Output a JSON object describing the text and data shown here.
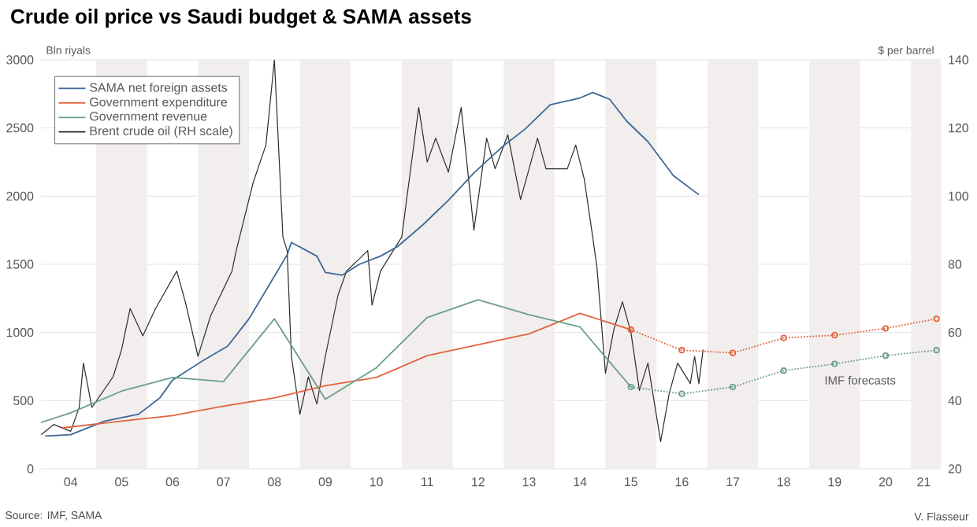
{
  "chart_data": {
    "type": "line",
    "title": "Crude oil price vs Saudi budget & SAMA assets",
    "ylabel": "Bln riyals",
    "y2label": "$ per barrel",
    "annotations": [
      {
        "text": "IMF forecasts",
        "x": "2020-01",
        "y": 650
      },
      "Source: IMF, SAMA",
      "V. Flasseur"
    ],
    "xlim": [
      "2003-12-01",
      "2021-08-01"
    ],
    "xticks": [
      {
        "value": "2004-07",
        "label": "04"
      },
      {
        "value": "2005-07",
        "label": "05"
      },
      {
        "value": "2006-07",
        "label": "06"
      },
      {
        "value": "2007-07",
        "label": "07"
      },
      {
        "value": "2008-07",
        "label": "08"
      },
      {
        "value": "2009-07",
        "label": "09"
      },
      {
        "value": "2010-07",
        "label": "10"
      },
      {
        "value": "2011-07",
        "label": "11"
      },
      {
        "value": "2012-07",
        "label": "12"
      },
      {
        "value": "2013-07",
        "label": "13"
      },
      {
        "value": "2014-07",
        "label": "14"
      },
      {
        "value": "2015-07",
        "label": "15"
      },
      {
        "value": "2016-07",
        "label": "16"
      },
      {
        "value": "2017-07",
        "label": "17"
      },
      {
        "value": "2018-07",
        "label": "18"
      },
      {
        "value": "2019-07",
        "label": "19"
      },
      {
        "value": "2020-07",
        "label": "20"
      },
      {
        "value": "2021-04",
        "label": "21"
      }
    ],
    "ylim": [
      0,
      3000
    ],
    "yticks": [
      0,
      500,
      1000,
      1500,
      2000,
      2500,
      3000
    ],
    "y2lim": [
      20,
      140
    ],
    "y2ticks": [
      20,
      40,
      60,
      80,
      100,
      120,
      140
    ],
    "grid": "y",
    "legend": "top left",
    "marker": "none",
    "line_style": "solid",
    "bands": [
      {
        "axis": "x",
        "from": "2005",
        "to": "2006",
        "color": "#f2eeed"
      },
      {
        "axis": "x",
        "from": "2007",
        "to": "2008",
        "color": "#f2eeed"
      },
      {
        "axis": "x",
        "from": "2009",
        "to": "2010",
        "color": "#f2eeed"
      },
      {
        "axis": "x",
        "from": "2011",
        "to": "2012",
        "color": "#f2eeed"
      },
      {
        "axis": "x",
        "from": "2013",
        "to": "2014",
        "color": "#f2eeed"
      },
      {
        "axis": "x",
        "from": "2015",
        "to": "2016",
        "color": "#f2eeed"
      },
      {
        "axis": "x",
        "from": "2017",
        "to": "2018",
        "color": "#f2eeed"
      },
      {
        "axis": "x",
        "from": "2019",
        "to": "2020",
        "color": "#f2eeed"
      },
      {
        "axis": "x",
        "from": "2021",
        "to": "2021-08-01",
        "color": "#f2eeed"
      }
    ],
    "series": [
      {
        "name": "SAMA net foreign assets",
        "color": "#3d6796",
        "x": [
          "2004-01",
          "2004-07",
          "2004-11",
          "2005-03",
          "2005-11",
          "2006-04",
          "2006-07",
          "2007-02",
          "2007-08",
          "2008-01",
          "2008-06",
          "2008-10",
          "2008-11",
          "2009-05",
          "2009-07",
          "2009-11",
          "2010-03",
          "2010-08",
          "2010-12",
          "2011-06",
          "2011-12",
          "2012-06",
          "2013-01",
          "2013-06",
          "2013-12",
          "2014-07",
          "2014-10",
          "2015-02",
          "2015-06",
          "2015-11",
          "2016-05",
          "2016-11"
        ],
        "values": [
          240,
          250,
          300,
          350,
          400,
          520,
          650,
          790,
          900,
          1100,
          1360,
          1570,
          1660,
          1560,
          1440,
          1420,
          1500,
          1560,
          1630,
          1790,
          1970,
          2170,
          2370,
          2490,
          2670,
          2720,
          2760,
          2710,
          2550,
          2400,
          2150,
          2010
        ]
      },
      {
        "name": "Government expenditure",
        "color": "#e0643f",
        "x": [
          "2004-05",
          "2005-07",
          "2006-07",
          "2007-07",
          "2008-07",
          "2009-07",
          "2010-07",
          "2011-07",
          "2012-07",
          "2013-07",
          "2014-07",
          "2015-07"
        ],
        "values": [
          300,
          350,
          390,
          460,
          520,
          610,
          670,
          830,
          910,
          990,
          1140,
          1020
        ]
      },
      {
        "name": "Government revenue",
        "color": "#6b9e8c",
        "x": [
          "2003-12",
          "2004-07",
          "2005-07",
          "2006-07",
          "2007-07",
          "2008-07",
          "2009-07",
          "2010-07",
          "2011-07",
          "2012-07",
          "2013-07",
          "2014-07",
          "2015-07"
        ],
        "values": [
          340,
          410,
          570,
          670,
          640,
          1100,
          510,
          740,
          1110,
          1240,
          1130,
          1040,
          600
        ]
      },
      {
        "color": "#e0643f",
        "line_style": "dotted",
        "marker": "circle",
        "x": [
          "2015-07",
          "2016-07",
          "2017-07",
          "2018-07",
          "2019-07",
          "2020-07",
          "2021-07"
        ],
        "values": [
          1020,
          870,
          850,
          960,
          980,
          1030,
          1100
        ]
      },
      {
        "color": "#6b9e8c",
        "line_style": "dotted",
        "marker": "circle",
        "x": [
          "2015-07",
          "2016-07",
          "2017-07",
          "2018-07",
          "2019-07",
          "2020-07",
          "2021-07"
        ],
        "values": [
          600,
          550,
          600,
          720,
          770,
          830,
          870
        ]
      },
      {
        "name": "Brent crude oil (RH scale)",
        "color": "#2b2b2b",
        "axis": "y2",
        "x": [
          "2003-12",
          "2004-03",
          "2004-07",
          "2004-09",
          "2004-10",
          "2004-12",
          "2005-05",
          "2005-07",
          "2005-09",
          "2005-12",
          "2006-03",
          "2006-08",
          "2006-10",
          "2007-01",
          "2007-04",
          "2007-09",
          "2007-10",
          "2007-12",
          "2008-02",
          "2008-05",
          "2008-07",
          "2008-09",
          "2008-10",
          "2008-11",
          "2009-01",
          "2009-03",
          "2009-05",
          "2009-07",
          "2009-10",
          "2009-12",
          "2010-05",
          "2010-06",
          "2010-08",
          "2010-11",
          "2011-01",
          "2011-03",
          "2011-05",
          "2011-07",
          "2011-09",
          "2011-12",
          "2012-03",
          "2012-06",
          "2012-09",
          "2012-11",
          "2013-02",
          "2013-05",
          "2013-09",
          "2013-11",
          "2014-04",
          "2014-06",
          "2014-08",
          "2014-10",
          "2014-11",
          "2015-01",
          "2015-03",
          "2015-05",
          "2015-07",
          "2015-09",
          "2015-11",
          "2016-02",
          "2016-04",
          "2016-06",
          "2016-09",
          "2016-10",
          "2016-11",
          "2016-12"
        ],
        "values": [
          30,
          33,
          31,
          38,
          51,
          38,
          47,
          55,
          67,
          59,
          67,
          78,
          69,
          53,
          65,
          78,
          84,
          94,
          104,
          115,
          140,
          88,
          84,
          53,
          36,
          47,
          39,
          53,
          71,
          78,
          84,
          68,
          78,
          84,
          88,
          107,
          126,
          110,
          117,
          107,
          126,
          90,
          117,
          108,
          118,
          99,
          117,
          108,
          108,
          115,
          105,
          88,
          79,
          48,
          61,
          69,
          60,
          43,
          51,
          28,
          42,
          51,
          45,
          53,
          45,
          55
        ]
      }
    ]
  }
}
